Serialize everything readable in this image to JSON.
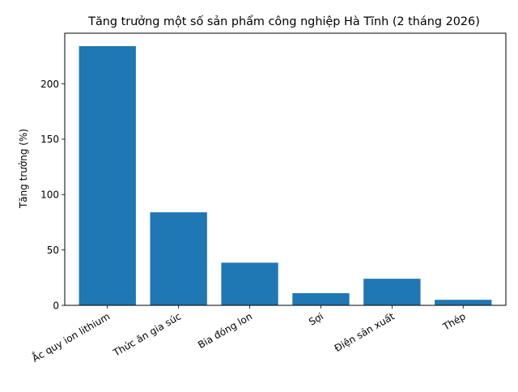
{
  "chart_data": {
    "type": "bar",
    "title": "Tăng trưởng một số sản phẩm công nghiệp Hà Tĩnh (2 tháng 2026)",
    "xlabel": "",
    "ylabel": "Tăng trưởng (%)",
    "categories": [
      "Ắc quy ion lithium",
      "Thức ăn gia súc",
      "Bia đóng lon",
      "Sợi",
      "Điện sản xuất",
      "Thép"
    ],
    "values": [
      234,
      84,
      38.5,
      11,
      24,
      5
    ],
    "ylim": [
      0,
      245.7
    ],
    "yticks": [
      0,
      50,
      100,
      150,
      200
    ],
    "grid": false,
    "bar_color": "#1f77b4"
  }
}
